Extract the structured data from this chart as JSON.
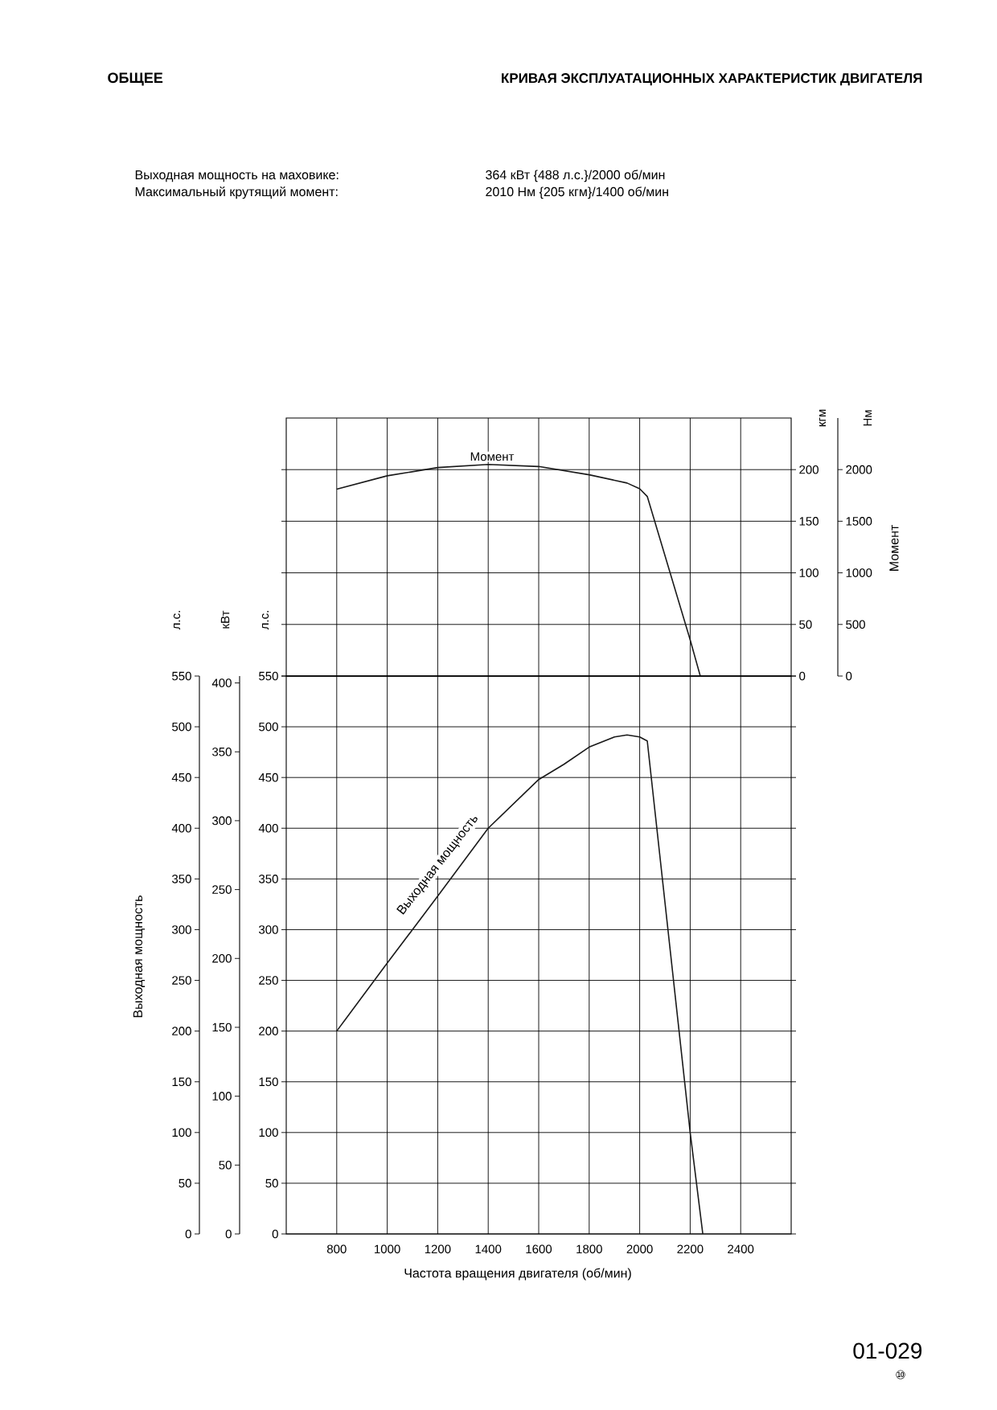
{
  "chart_data": [
    {
      "type": "line",
      "title": "КРИВАЯ ЭКСПЛУАТАЦИОННЫХ ХАРАКТЕРИСТИК ДВИГАТЕЛЯ",
      "ylabel": "кгм",
      "y2label": "Нм",
      "annotations": [
        "ОБЩЕЕ",
        "Выходная мощность на маховике:",
        "364 кВт {488 л.с.}/2000 об/мин",
        "Максимальный крутящий момент:",
        "2010 Нм {205 кгм}/1400 об/мин",
        "Момент",
        "Момент"
      ],
      "xlim": [
        600,
        2600
      ],
      "xticks": [
        800,
        1000,
        1200,
        1400,
        1600,
        1800,
        2000,
        2200,
        2400
      ],
      "ylim": [
        0,
        250
      ],
      "yticks": [
        0,
        50,
        100,
        150,
        200
      ],
      "y2lim": [
        0,
        2500
      ],
      "y2ticks": [
        0,
        500,
        1000,
        1500,
        2000
      ],
      "grid": true,
      "tick_labels": "y",
      "series": [
        {
          "color": "#1a1a1a",
          "x": [
            800,
            1000,
            1200,
            1400,
            1600,
            1800,
            1950,
            2000,
            2030,
            2200,
            2240
          ],
          "values": [
            181,
            194,
            202,
            205,
            203,
            195,
            187,
            181.5,
            174,
            35,
            0
          ]
        }
      ]
    },
    {
      "type": "line",
      "xlabel": "Частота вращения двигателя (об/мин)",
      "ylabel": "л.с.",
      "y2label": "кВт",
      "y3label": "л.с.",
      "annotations": [
        "Выходная мощность",
        "Выходная мощность",
        "01-029",
        "⑩"
      ],
      "xlim": [
        600,
        2600
      ],
      "xticks": [
        800,
        1000,
        1200,
        1400,
        1600,
        1800,
        2000,
        2200,
        2400
      ],
      "ylim": [
        0,
        550
      ],
      "yticks": [
        0,
        50,
        100,
        150,
        200,
        250,
        300,
        350,
        400,
        450,
        500,
        550
      ],
      "y2lim": [
        0,
        405
      ],
      "y2ticks": [
        0,
        50,
        100,
        150,
        200,
        250,
        300,
        350,
        400
      ],
      "y3lim": [
        0,
        550
      ],
      "y3ticks": [
        0,
        50,
        100,
        150,
        200,
        250,
        300,
        350,
        400,
        450,
        500,
        550
      ],
      "grid": true,
      "series": [
        {
          "color": "#1a1a1a",
          "x": [
            800,
            1000,
            1200,
            1400,
            1600,
            1700,
            1800,
            1900,
            1950,
            2000,
            2030,
            2200,
            2250
          ],
          "values": [
            200,
            267,
            333,
            400,
            448,
            463,
            480,
            490,
            492,
            490,
            486,
            100,
            0
          ]
        }
      ]
    }
  ]
}
